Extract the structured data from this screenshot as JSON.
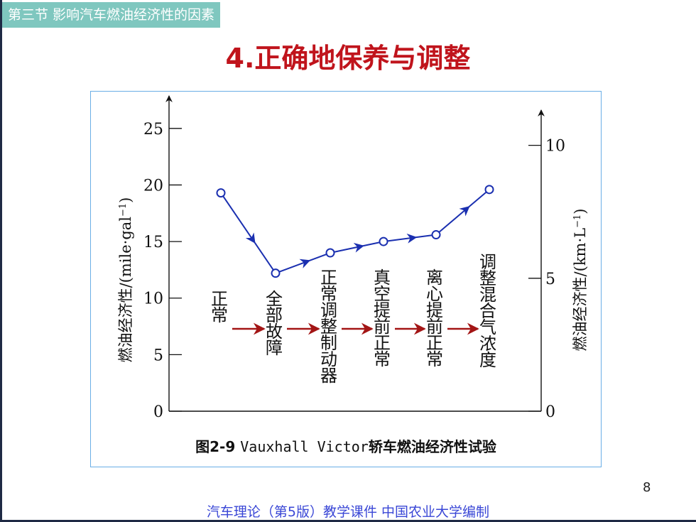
{
  "header": {
    "section_label": "第三节  影响汽车燃油经济性的因素"
  },
  "slide": {
    "title": "4.正确地保养与调整",
    "page_number": "8"
  },
  "figure": {
    "caption_prefix": "图2-9",
    "caption_model": "Vauxhall Victor",
    "caption_suffix": "轿车燃油经济性试验"
  },
  "chart_data": {
    "type": "line",
    "title": "",
    "left_axis": {
      "label": "燃油经济性/(mile·gal",
      "label_sup": "−1",
      "label_end": ")",
      "range": [
        0,
        27.5
      ],
      "ticks": [
        0,
        5,
        10,
        15,
        20,
        25
      ]
    },
    "right_axis": {
      "label": "燃油经济性/(km·L",
      "label_sup": "−1",
      "label_end": ")",
      "range": [
        0,
        11.7
      ],
      "ticks": [
        0,
        5,
        10
      ]
    },
    "categories": [
      "正常",
      "全部故障",
      "正常调整制动器",
      "真空提前正常",
      "离心提前正常",
      "调整混合气浓度"
    ],
    "series": [
      {
        "values": [
          19.3,
          12.2,
          14.0,
          15.0,
          15.6,
          19.6
        ],
        "color": "#1a2fb0"
      }
    ],
    "grid": false,
    "legend": "none"
  },
  "footer": {
    "text": "汽车理论（第5版）教学课件   中国农业大学编制"
  },
  "colors": {
    "title": "#c0141c",
    "tab": "#7fc7bf",
    "series": "#1a2fb0",
    "arrow": "#a31515",
    "footer": "#3a47d6"
  }
}
